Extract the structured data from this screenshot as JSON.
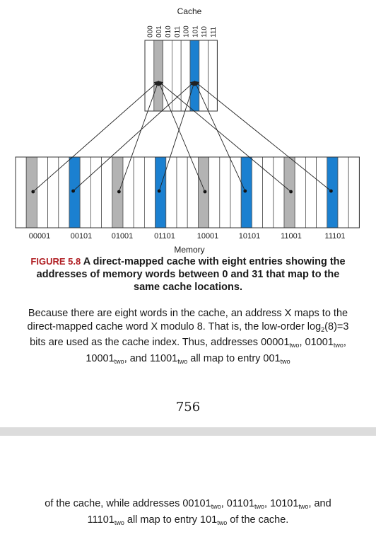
{
  "figure": {
    "cache_label": "Cache",
    "memory_label": "Memory",
    "cache_indices": [
      "000",
      "001",
      "010",
      "011",
      "100",
      "101",
      "110",
      "111"
    ],
    "memory_address_labels": [
      "00001",
      "00101",
      "01001",
      "01101",
      "10001",
      "10101",
      "11001",
      "11101"
    ],
    "highlight_colors": {
      "gray": "#b3b3b3",
      "blue": "#1b80d0"
    }
  },
  "caption": {
    "label": "FIGURE 5.8",
    "title": "A direct-mapped cache with eight entries showing the addresses of memory words between 0 and 31 that map to the same cache locations.",
    "body_p1": "Because there are eight words in the cache, an address X maps to the direct-mapped cache word X modulo 8. That is, the low-order log",
    "log_sub": "2",
    "body_p2": "(8)=3 bits are used as the cache index. Thus, addresses 00001",
    "two": "two",
    "addr_01001": "01001",
    "addr_10001": "10001",
    "addr_11001": "11001",
    "sep_comma": ", ",
    "sep_and": ", and ",
    "map_text": " all map to entry 001",
    "cont_p1": "of the cache, while addresses 00101",
    "addr_01101": "01101",
    "addr_10101": "10101",
    "addr_11101": "11101",
    "cont_map": " all map to entry 101",
    "cont_end": " of the cache."
  },
  "page_number": "756"
}
